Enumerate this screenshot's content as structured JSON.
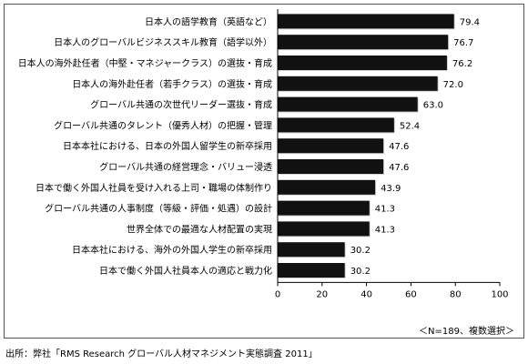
{
  "chart_data": {
    "type": "bar",
    "orientation": "horizontal",
    "categories": [
      "日本人の語学教育（英語など）",
      "日本人のグローバルビジネススキル教育（語学以外）",
      "日本人の海外赴任者（中堅・マネジャークラス）の選抜・育成",
      "日本人の海外赴任者（若手クラス）の選抜・育成",
      "グローバル共通の次世代リーダー選抜・育成",
      "グローバル共通のタレント（優秀人材）の把握・管理",
      "日本本社における、日本の外国人留学生の新卒採用",
      "グローバル共通の経営理念・バリュー浸透",
      "日本で働く外国人社員を受け入れる上司・職場の体制作り",
      "グローバル共通の人事制度（等級・評価・処遇）の設計",
      "世界全体での最適な人材配置の実現",
      "日本本社における、海外の外国人学生の新卒採用",
      "日本で働く外国人社員本人の適応と戦力化"
    ],
    "values": [
      79.4,
      76.7,
      76.2,
      72.0,
      63.0,
      52.4,
      47.6,
      47.6,
      43.9,
      41.3,
      41.3,
      30.2,
      30.2
    ],
    "value_labels": [
      "79.4",
      "76.7",
      "76.2",
      "72.0",
      "63.0",
      "52.4",
      "47.6",
      "47.6",
      "43.9",
      "41.3",
      "41.3",
      "30.2",
      "30.2"
    ],
    "xlim": [
      0,
      100
    ],
    "xticks": [
      0,
      20,
      40,
      60,
      80,
      100
    ],
    "grid": false,
    "bar_color": "#111111"
  },
  "note": "＜N=189、複数選択＞",
  "source": "出所：弊社「RMS Research グローバル人材マネジメント実態調査 2011」"
}
